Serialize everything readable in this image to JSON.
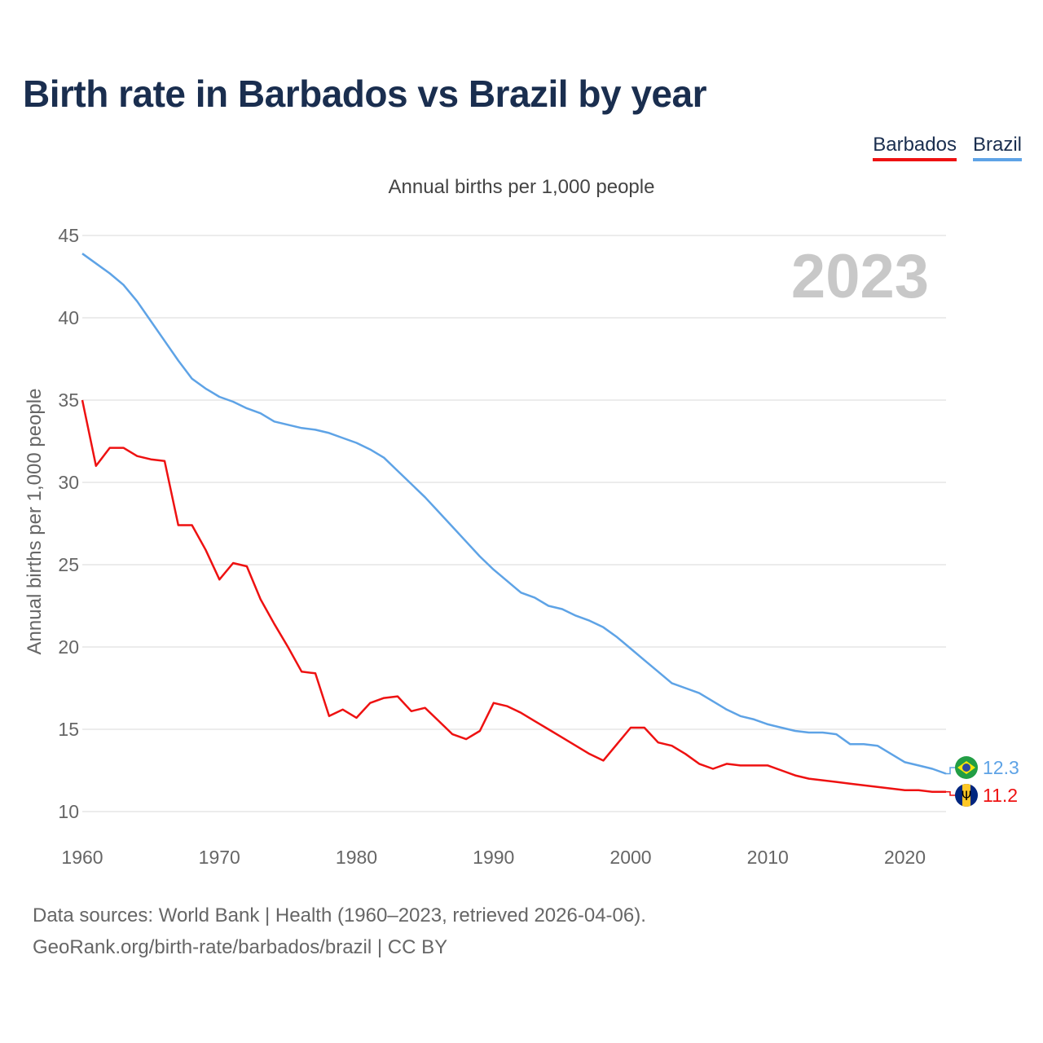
{
  "title": "Birth rate in Barbados vs Brazil by year",
  "legend": [
    {
      "label": "Barbados",
      "color": "#ee1111"
    },
    {
      "label": "Brazil",
      "color": "#5ea3e6"
    }
  ],
  "subtitle": "Annual births per 1,000 people",
  "year_label": "2023",
  "footer": {
    "line1": "Data sources: World Bank | Health (1960–2023, retrieved 2026-04-06).",
    "line2": "GeoRank.org/birth-rate/barbados/brazil | CC BY"
  },
  "chart_data": {
    "type": "line",
    "title": "Birth rate in Barbados vs Brazil by year",
    "ylabel": "Annual births per 1,000 people",
    "xlabel": "",
    "xlim": [
      1960,
      2023
    ],
    "ylim": [
      10,
      45
    ],
    "yticks": [
      10,
      15,
      20,
      25,
      30,
      35,
      40,
      45
    ],
    "xticks": [
      1960,
      1970,
      1980,
      1990,
      2000,
      2010,
      2020
    ],
    "grid": true,
    "x": [
      1960,
      1961,
      1962,
      1963,
      1964,
      1965,
      1966,
      1967,
      1968,
      1969,
      1970,
      1971,
      1972,
      1973,
      1974,
      1975,
      1976,
      1977,
      1978,
      1979,
      1980,
      1981,
      1982,
      1983,
      1984,
      1985,
      1986,
      1987,
      1988,
      1989,
      1990,
      1991,
      1992,
      1993,
      1994,
      1995,
      1996,
      1997,
      1998,
      1999,
      2000,
      2001,
      2002,
      2003,
      2004,
      2005,
      2006,
      2007,
      2008,
      2009,
      2010,
      2011,
      2012,
      2013,
      2014,
      2015,
      2016,
      2017,
      2018,
      2019,
      2020,
      2021,
      2022,
      2023
    ],
    "series": [
      {
        "name": "Barbados",
        "color": "#ee1111",
        "last_value": "11.2",
        "values": [
          35.0,
          31.0,
          32.1,
          32.1,
          31.6,
          31.4,
          31.3,
          27.4,
          27.4,
          25.9,
          24.1,
          25.1,
          24.9,
          22.9,
          21.4,
          20.0,
          18.5,
          18.4,
          15.8,
          16.2,
          15.7,
          16.6,
          16.9,
          17.0,
          16.1,
          16.3,
          15.5,
          14.7,
          14.4,
          14.9,
          16.6,
          16.4,
          16.0,
          15.5,
          15.0,
          14.5,
          14.0,
          13.5,
          13.1,
          14.1,
          15.1,
          15.1,
          14.2,
          14.0,
          13.5,
          12.9,
          12.6,
          12.9,
          12.8,
          12.8,
          12.8,
          12.5,
          12.2,
          12.0,
          11.9,
          11.8,
          11.7,
          11.6,
          11.5,
          11.4,
          11.3,
          11.3,
          11.2,
          11.2
        ]
      },
      {
        "name": "Brazil",
        "color": "#5ea3e6",
        "last_value": "12.3",
        "values": [
          43.9,
          43.3,
          42.7,
          42.0,
          41.0,
          39.8,
          38.6,
          37.4,
          36.3,
          35.7,
          35.2,
          34.9,
          34.5,
          34.2,
          33.7,
          33.5,
          33.3,
          33.2,
          33.0,
          32.7,
          32.4,
          32.0,
          31.5,
          30.7,
          29.9,
          29.1,
          28.2,
          27.3,
          26.4,
          25.5,
          24.7,
          24.0,
          23.3,
          23.0,
          22.5,
          22.3,
          21.9,
          21.6,
          21.2,
          20.6,
          19.9,
          19.2,
          18.5,
          17.8,
          17.5,
          17.2,
          16.7,
          16.2,
          15.8,
          15.6,
          15.3,
          15.1,
          14.9,
          14.8,
          14.8,
          14.7,
          14.1,
          14.1,
          14.0,
          13.5,
          13.0,
          12.8,
          12.6,
          12.3
        ]
      }
    ]
  }
}
